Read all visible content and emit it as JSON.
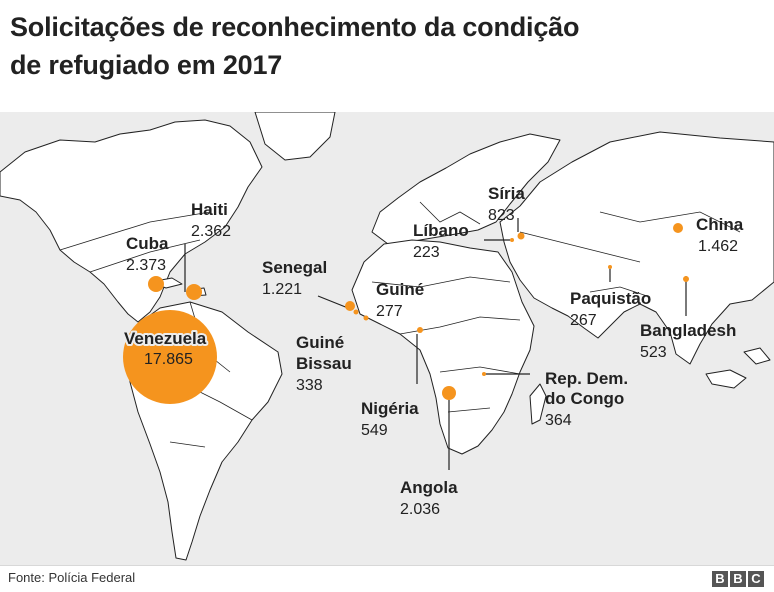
{
  "title": {
    "line1": "Solicitações de reconhecimento da condição",
    "line2": "de refugiado em 2017"
  },
  "colors": {
    "bubble": "#f5941e",
    "land": "#ffffff",
    "water": "#ececec",
    "outline": "#222222"
  },
  "points": [
    {
      "id": "venezuela",
      "name": "Venezuela",
      "value": "17.865",
      "count": 17865
    },
    {
      "id": "cuba",
      "name": "Cuba",
      "value": "2.373",
      "count": 2373
    },
    {
      "id": "haiti",
      "name": "Haiti",
      "value": "2.362",
      "count": 2362
    },
    {
      "id": "senegal",
      "name": "Senegal",
      "value": "1.221",
      "count": 1221
    },
    {
      "id": "guine",
      "name": "Guiné",
      "value": "277",
      "count": 277
    },
    {
      "id": "guine-bissau",
      "name_lines": [
        "Guiné",
        "Bissau"
      ],
      "value": "338",
      "count": 338
    },
    {
      "id": "nigeria",
      "name": "Nigéria",
      "value": "549",
      "count": 549
    },
    {
      "id": "angola",
      "name": "Angola",
      "value": "2.036",
      "count": 2036
    },
    {
      "id": "rdc",
      "name_lines": [
        "Rep. Dem.",
        "do Congo"
      ],
      "value": "364",
      "count": 364
    },
    {
      "id": "siria",
      "name": "Síria",
      "value": "823",
      "count": 823
    },
    {
      "id": "libano",
      "name": "Líbano",
      "value": "223",
      "count": 223
    },
    {
      "id": "paquistao",
      "name": "Paquistão",
      "value": "267",
      "count": 267
    },
    {
      "id": "china",
      "name": "China",
      "value": "1.462",
      "count": 1462
    },
    {
      "id": "bangladesh",
      "name": "Bangladesh",
      "value": "523",
      "count": 523
    }
  ],
  "footer": {
    "source": "Fonte: Polícia Federal",
    "logo_letters": [
      "B",
      "B",
      "C"
    ]
  }
}
